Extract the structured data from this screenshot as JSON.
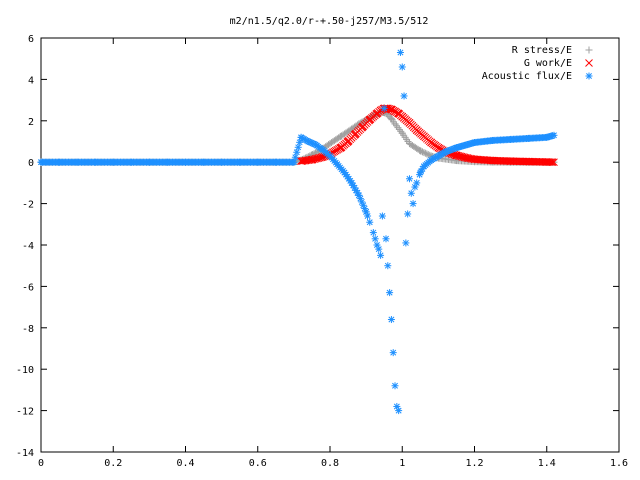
{
  "chart_data": {
    "type": "scatter",
    "title": "m2/n1.5/q2.0/r-+.50-j257/M3.5/512",
    "xlabel": "",
    "ylabel": "",
    "xlim": [
      0,
      1.6
    ],
    "ylim": [
      -14,
      6
    ],
    "xticks": [
      "0",
      "0.2",
      "0.4",
      "0.6",
      "0.8",
      "1",
      "1.2",
      "1.4",
      "1.6"
    ],
    "yticks": [
      "6",
      "4",
      "2",
      "0",
      "-2",
      "-4",
      "-6",
      "-8",
      "-10",
      "-12",
      "-14"
    ],
    "grid": false,
    "legend_position": "top-right",
    "series": [
      {
        "name": "R stress/E",
        "marker": "plus",
        "color": "#a0a0a0",
        "x": [
          0.0,
          0.1,
          0.2,
          0.3,
          0.4,
          0.5,
          0.6,
          0.7,
          0.72,
          0.75,
          0.78,
          0.8,
          0.83,
          0.86,
          0.88,
          0.9,
          0.92,
          0.94,
          0.95,
          0.96,
          0.97,
          0.98,
          1.0,
          1.02,
          1.05,
          1.08,
          1.1,
          1.15,
          1.2,
          1.25,
          1.3,
          1.35,
          1.4,
          1.42
        ],
        "y": [
          0,
          0,
          0,
          0,
          0,
          0,
          0,
          0,
          0.1,
          0.35,
          0.65,
          0.9,
          1.25,
          1.6,
          1.85,
          2.05,
          2.25,
          2.4,
          2.4,
          2.3,
          2.1,
          1.85,
          1.4,
          0.9,
          0.55,
          0.3,
          0.2,
          0.08,
          0.03,
          0.01,
          0,
          0,
          0,
          0
        ]
      },
      {
        "name": "G work/E",
        "marker": "cross",
        "color": "#ff0000",
        "x": [
          0.72,
          0.75,
          0.78,
          0.8,
          0.83,
          0.85,
          0.87,
          0.89,
          0.91,
          0.93,
          0.94,
          0.95,
          0.96,
          0.97,
          0.98,
          0.99,
          1.0,
          1.02,
          1.04,
          1.06,
          1.08,
          1.1,
          1.12,
          1.15,
          1.18,
          1.2,
          1.25,
          1.3,
          1.35,
          1.4,
          1.42
        ],
        "y": [
          0.05,
          0.12,
          0.25,
          0.4,
          0.7,
          1.0,
          1.35,
          1.7,
          2.05,
          2.35,
          2.5,
          2.6,
          2.6,
          2.55,
          2.45,
          2.35,
          2.2,
          1.9,
          1.55,
          1.25,
          0.95,
          0.7,
          0.5,
          0.33,
          0.2,
          0.14,
          0.08,
          0.05,
          0.03,
          0.01,
          0.0
        ]
      },
      {
        "name": "Acoustic flux/E",
        "marker": "star",
        "color": "#1e90ff",
        "x": [
          0.0,
          0.05,
          0.1,
          0.15,
          0.2,
          0.25,
          0.3,
          0.35,
          0.4,
          0.45,
          0.5,
          0.55,
          0.6,
          0.65,
          0.7,
          0.72,
          0.74,
          0.76,
          0.78,
          0.8,
          0.82,
          0.84,
          0.86,
          0.88,
          0.9,
          0.91,
          0.92,
          0.925,
          0.93,
          0.935,
          0.94,
          0.945,
          0.95,
          0.955,
          0.96,
          0.965,
          0.97,
          0.975,
          0.98,
          0.985,
          0.99,
          0.995,
          1.0,
          1.005,
          1.01,
          1.015,
          1.02,
          1.025,
          1.03,
          1.035,
          1.04,
          1.05,
          1.06,
          1.08,
          1.1,
          1.12,
          1.15,
          1.18,
          1.2,
          1.25,
          1.3,
          1.35,
          1.4,
          1.42
        ],
        "y": [
          0,
          0,
          0,
          0,
          0,
          0,
          0,
          0,
          0,
          0,
          0,
          0,
          0,
          0,
          0,
          1.2,
          1.0,
          0.85,
          0.6,
          0.3,
          -0.1,
          -0.5,
          -1.0,
          -1.6,
          -2.4,
          -2.9,
          -3.4,
          -3.7,
          -4.0,
          -4.2,
          -4.5,
          -2.6,
          2.6,
          -3.7,
          -5.0,
          -6.3,
          -7.6,
          -9.2,
          -10.8,
          -11.8,
          -12.0,
          5.3,
          4.6,
          3.2,
          -3.9,
          -2.5,
          -0.8,
          -1.5,
          -2.0,
          -1.2,
          -1.0,
          -0.5,
          -0.2,
          0.1,
          0.3,
          0.5,
          0.7,
          0.85,
          0.95,
          1.05,
          1.1,
          1.15,
          1.2,
          1.3
        ]
      }
    ]
  }
}
